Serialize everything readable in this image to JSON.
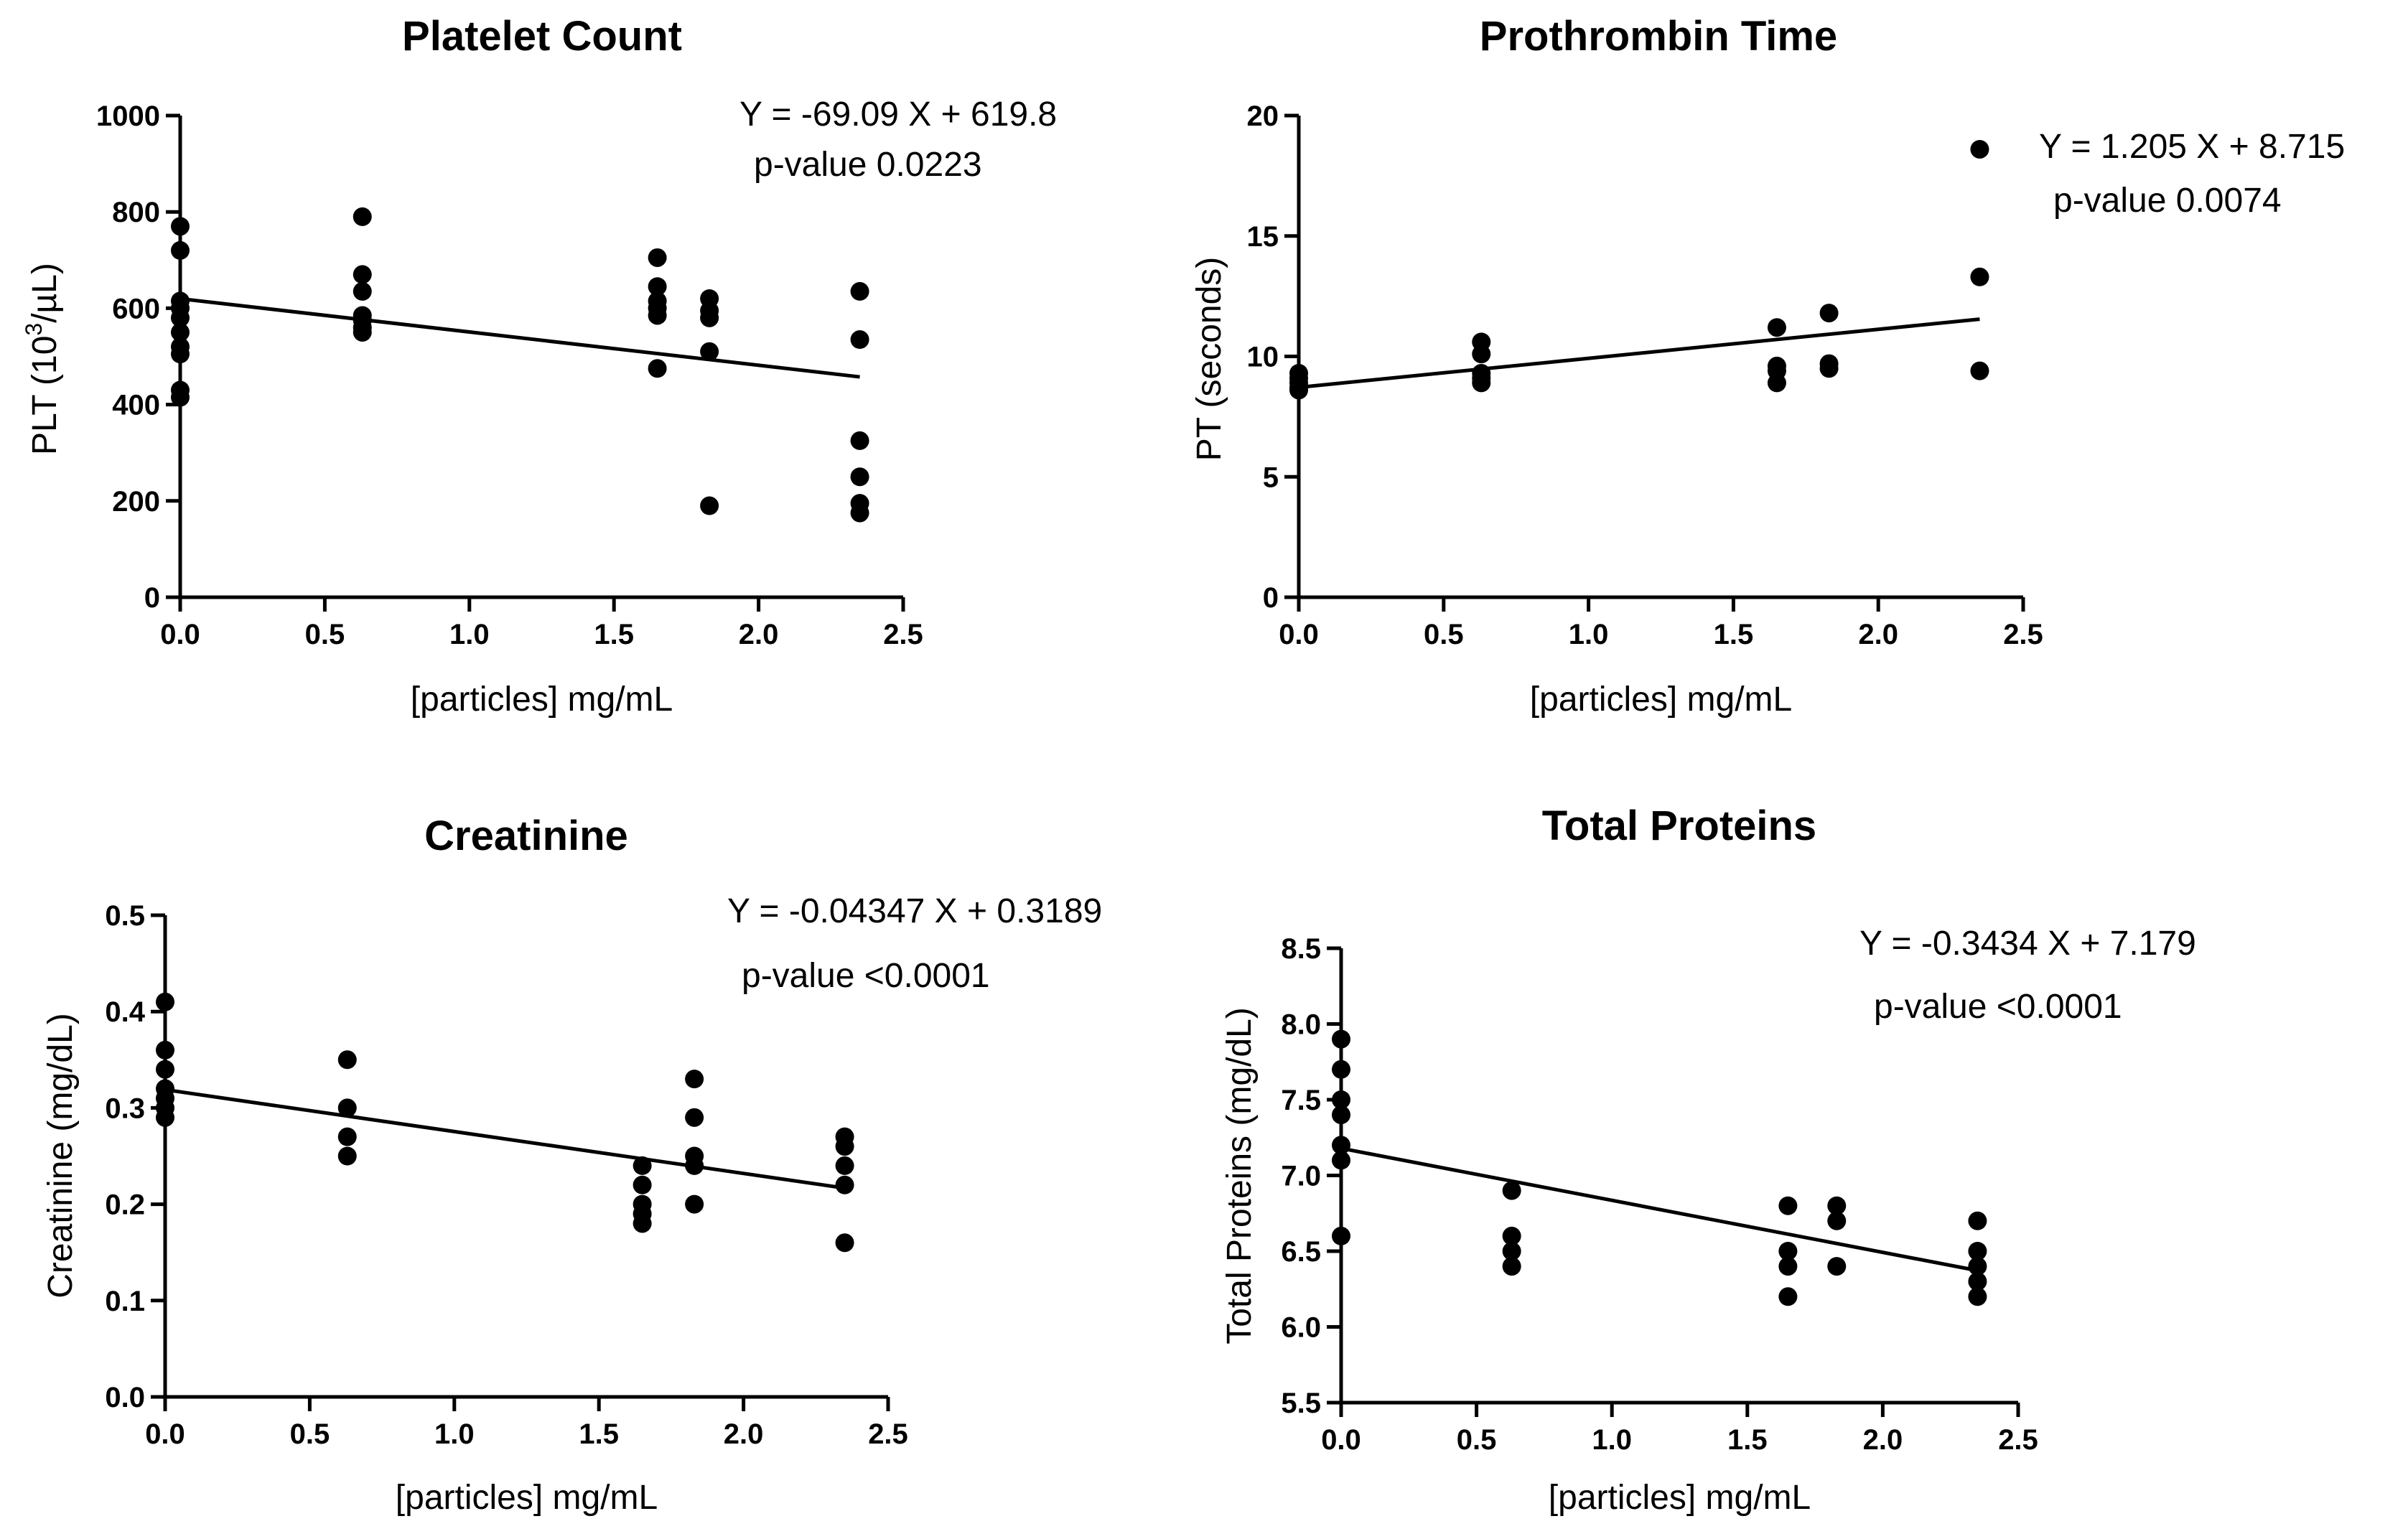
{
  "chart_data": [
    {
      "type": "scatter",
      "title": "Platelet Count",
      "xlabel": "[particles] mg/mL",
      "ylabel": "PLT (10³/µL)",
      "ylabel_parts": {
        "pre": "PLT (10",
        "sup": "3",
        "post": "/µL)"
      },
      "xlim": [
        0,
        2.5
      ],
      "ylim": [
        0,
        1000
      ],
      "xticks": [
        0,
        0.5,
        1,
        1.5,
        2,
        2.5
      ],
      "xtick_labels": [
        "0.0",
        "0.5",
        "1.0",
        "1.5",
        "2.0",
        "2.5"
      ],
      "yticks": [
        0,
        200,
        400,
        600,
        800,
        1000
      ],
      "ytick_labels": [
        "0",
        "200",
        "400",
        "600",
        "800",
        "1000"
      ],
      "grid": false,
      "points": [
        [
          0,
          770
        ],
        [
          0,
          720
        ],
        [
          0,
          615
        ],
        [
          0,
          600
        ],
        [
          0,
          580
        ],
        [
          0,
          550
        ],
        [
          0,
          520
        ],
        [
          0,
          505
        ],
        [
          0,
          430
        ],
        [
          0,
          415
        ],
        [
          0.63,
          790
        ],
        [
          0.63,
          670
        ],
        [
          0.63,
          635
        ],
        [
          0.63,
          585
        ],
        [
          0.63,
          575
        ],
        [
          0.63,
          560
        ],
        [
          0.63,
          550
        ],
        [
          1.65,
          705
        ],
        [
          1.65,
          645
        ],
        [
          1.65,
          615
        ],
        [
          1.65,
          600
        ],
        [
          1.65,
          585
        ],
        [
          1.65,
          475
        ],
        [
          1.83,
          620
        ],
        [
          1.83,
          595
        ],
        [
          1.83,
          580
        ],
        [
          1.83,
          510
        ],
        [
          1.83,
          190
        ],
        [
          2.35,
          635
        ],
        [
          2.35,
          535
        ],
        [
          2.35,
          325
        ],
        [
          2.35,
          250
        ],
        [
          2.35,
          195
        ],
        [
          2.35,
          175
        ]
      ],
      "fit": {
        "slope": -69.09,
        "intercept": 619.8,
        "x_range": [
          0,
          2.35
        ]
      },
      "annotation": {
        "equation": "Y = -69.09 X + 619.8",
        "pvalue": "p-value 0.0223"
      }
    },
    {
      "type": "scatter",
      "title": "Prothrombin Time",
      "xlabel": "[particles] mg/mL",
      "ylabel": "PT (seconds)",
      "xlim": [
        0,
        2.5
      ],
      "ylim": [
        0,
        20
      ],
      "xticks": [
        0,
        0.5,
        1,
        1.5,
        2,
        2.5
      ],
      "xtick_labels": [
        "0.0",
        "0.5",
        "1.0",
        "1.5",
        "2.0",
        "2.5"
      ],
      "yticks": [
        0,
        5,
        10,
        15,
        20
      ],
      "ytick_labels": [
        "0",
        "5",
        "10",
        "15",
        "20"
      ],
      "grid": false,
      "points": [
        [
          0,
          9.3
        ],
        [
          0,
          9.1
        ],
        [
          0,
          8.9
        ],
        [
          0,
          8.7
        ],
        [
          0,
          8.6
        ],
        [
          0.63,
          10.6
        ],
        [
          0.63,
          10.1
        ],
        [
          0.63,
          9.3
        ],
        [
          0.63,
          9.1
        ],
        [
          0.63,
          8.9
        ],
        [
          1.65,
          11.2
        ],
        [
          1.65,
          9.6
        ],
        [
          1.65,
          9.4
        ],
        [
          1.65,
          8.9
        ],
        [
          1.83,
          11.8
        ],
        [
          1.83,
          9.7
        ],
        [
          1.83,
          9.5
        ],
        [
          2.35,
          18.6
        ],
        [
          2.35,
          13.3
        ],
        [
          2.35,
          9.4
        ]
      ],
      "fit": {
        "slope": 1.205,
        "intercept": 8.715,
        "x_range": [
          0,
          2.35
        ]
      },
      "annotation": {
        "equation": "Y = 1.205 X + 8.715",
        "pvalue": "p-value 0.0074"
      }
    },
    {
      "type": "scatter",
      "title": "Creatinine",
      "xlabel": "[particles] mg/mL",
      "ylabel": "Creatinine (mg/dL)",
      "xlim": [
        0,
        2.5
      ],
      "ylim": [
        0,
        0.5
      ],
      "xticks": [
        0,
        0.5,
        1,
        1.5,
        2,
        2.5
      ],
      "xtick_labels": [
        "0.0",
        "0.5",
        "1.0",
        "1.5",
        "2.0",
        "2.5"
      ],
      "yticks": [
        0,
        0.1,
        0.2,
        0.3,
        0.4,
        0.5
      ],
      "ytick_labels": [
        "0.0",
        "0.1",
        "0.2",
        "0.3",
        "0.4",
        "0.5"
      ],
      "grid": false,
      "points": [
        [
          0,
          0.41
        ],
        [
          0,
          0.36
        ],
        [
          0,
          0.34
        ],
        [
          0,
          0.32
        ],
        [
          0,
          0.31
        ],
        [
          0,
          0.3
        ],
        [
          0,
          0.29
        ],
        [
          0.63,
          0.35
        ],
        [
          0.63,
          0.3
        ],
        [
          0.63,
          0.27
        ],
        [
          0.63,
          0.25
        ],
        [
          1.65,
          0.24
        ],
        [
          1.65,
          0.22
        ],
        [
          1.65,
          0.2
        ],
        [
          1.65,
          0.19
        ],
        [
          1.65,
          0.18
        ],
        [
          1.83,
          0.33
        ],
        [
          1.83,
          0.29
        ],
        [
          1.83,
          0.25
        ],
        [
          1.83,
          0.24
        ],
        [
          1.83,
          0.2
        ],
        [
          2.35,
          0.27
        ],
        [
          2.35,
          0.26
        ],
        [
          2.35,
          0.24
        ],
        [
          2.35,
          0.22
        ],
        [
          2.35,
          0.16
        ]
      ],
      "fit": {
        "slope": -0.04347,
        "intercept": 0.3189,
        "x_range": [
          0,
          2.35
        ]
      },
      "annotation": {
        "equation": "Y = -0.04347 X + 0.3189",
        "pvalue": "p-value <0.0001"
      }
    },
    {
      "type": "scatter",
      "title": "Total Proteins",
      "xlabel": "[particles] mg/mL",
      "ylabel": "Total Proteins (mg/dL)",
      "xlim": [
        0,
        2.5
      ],
      "ylim": [
        5.5,
        8.5
      ],
      "xticks": [
        0,
        0.5,
        1,
        1.5,
        2,
        2.5
      ],
      "xtick_labels": [
        "0.0",
        "0.5",
        "1.0",
        "1.5",
        "2.0",
        "2.5"
      ],
      "yticks": [
        5.5,
        6,
        6.5,
        7,
        7.5,
        8,
        8.5
      ],
      "ytick_labels": [
        "5.5",
        "6.0",
        "6.5",
        "7.0",
        "7.5",
        "8.0",
        "8.5"
      ],
      "grid": false,
      "points": [
        [
          0,
          7.9
        ],
        [
          0,
          7.7
        ],
        [
          0,
          7.5
        ],
        [
          0,
          7.4
        ],
        [
          0,
          7.2
        ],
        [
          0,
          7.1
        ],
        [
          0,
          6.6
        ],
        [
          0.63,
          6.9
        ],
        [
          0.63,
          6.6
        ],
        [
          0.63,
          6.5
        ],
        [
          0.63,
          6.4
        ],
        [
          1.65,
          6.8
        ],
        [
          1.65,
          6.5
        ],
        [
          1.65,
          6.4
        ],
        [
          1.65,
          6.2
        ],
        [
          1.83,
          6.8
        ],
        [
          1.83,
          6.7
        ],
        [
          1.83,
          6.4
        ],
        [
          2.35,
          6.7
        ],
        [
          2.35,
          6.5
        ],
        [
          2.35,
          6.4
        ],
        [
          2.35,
          6.3
        ],
        [
          2.35,
          6.2
        ]
      ],
      "fit": {
        "slope": -0.3434,
        "intercept": 7.179,
        "x_range": [
          0,
          2.35
        ]
      },
      "annotation": {
        "equation": "Y = -0.3434 X + 7.179",
        "pvalue": "p-value <0.0001"
      }
    }
  ]
}
